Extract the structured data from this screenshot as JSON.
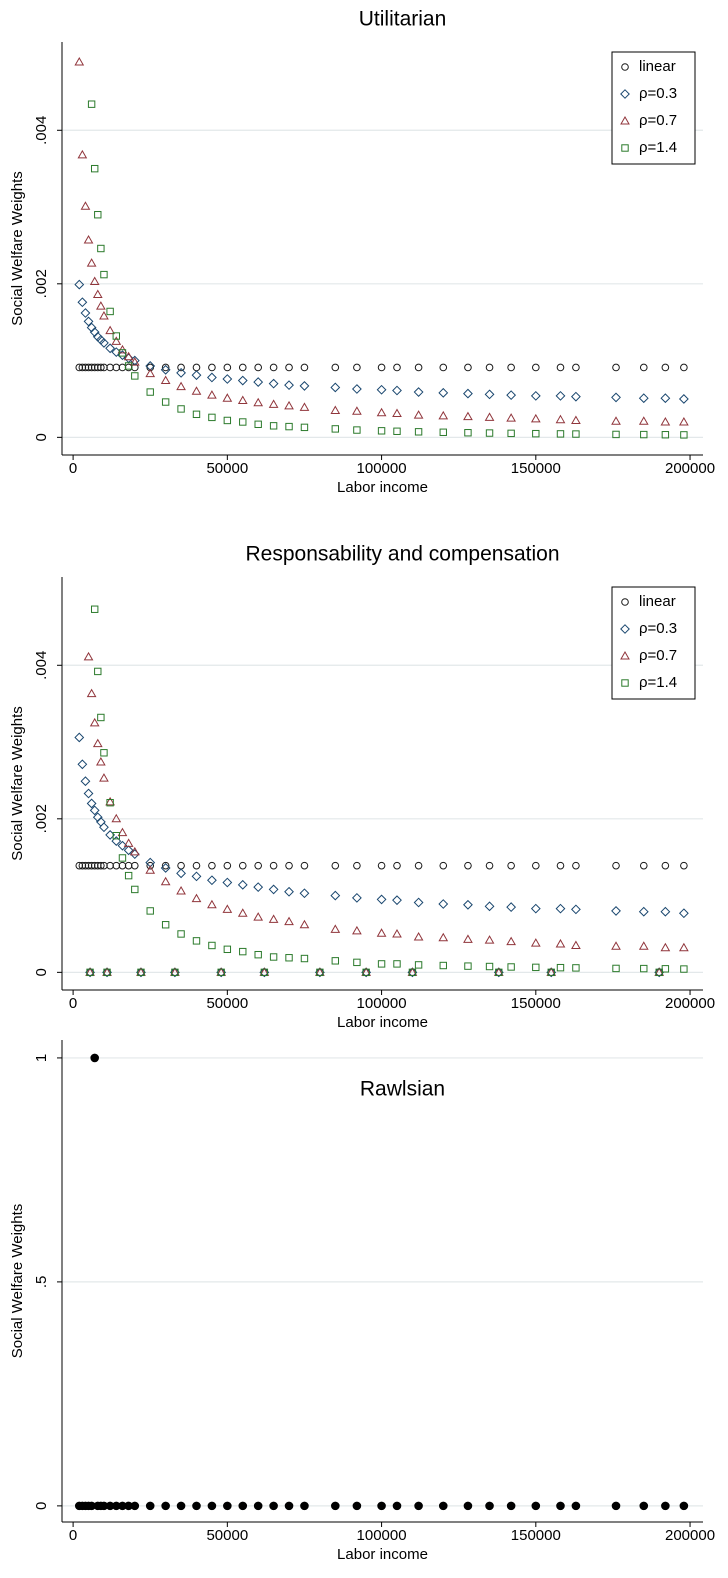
{
  "chart_data": [
    {
      "type": "scatter",
      "title": "Utilitarian",
      "xlabel": "Labor income",
      "ylabel": "Social Welfare Weights",
      "x": [
        2000,
        3000,
        4000,
        5000,
        6000,
        7000,
        8000,
        9000,
        10000,
        12000,
        14000,
        16000,
        18000,
        20000,
        25000,
        30000,
        35000,
        40000,
        45000,
        50000,
        55000,
        60000,
        65000,
        70000,
        75000,
        85000,
        92000,
        100000,
        105000,
        112000,
        120000,
        128000,
        135000,
        142000,
        150000,
        158000,
        163000,
        176000,
        185000,
        192000,
        198000
      ],
      "series": [
        {
          "name": "linear",
          "color": "#1a1a1a",
          "marker": "circle",
          "values": [
            0.00091,
            0.00091,
            0.00091,
            0.00091,
            0.00091,
            0.00091,
            0.00091,
            0.00091,
            0.00091,
            0.00091,
            0.00091,
            0.00091,
            0.00091,
            0.00091,
            0.00091,
            0.00091,
            0.00091,
            0.00091,
            0.00091,
            0.00091,
            0.00091,
            0.00091,
            0.00091,
            0.00091,
            0.00091,
            0.00091,
            0.00091,
            0.00091,
            0.00091,
            0.00091,
            0.00091,
            0.00091,
            0.00091,
            0.00091,
            0.00091,
            0.00091,
            0.00091,
            0.00091,
            0.00091,
            0.00091,
            0.00091
          ]
        },
        {
          "name": "ρ=0.3",
          "color": "#1a476f",
          "marker": "diamond",
          "values": [
            0.00199,
            0.00176,
            0.00162,
            0.00151,
            0.00143,
            0.00137,
            0.00131,
            0.00127,
            0.00123,
            0.00116,
            0.00111,
            0.00107,
            0.00103,
            0.001,
            0.00093,
            0.00088,
            0.00084,
            0.00081,
            0.00078,
            0.00076,
            0.00074,
            0.00072,
            0.0007,
            0.00068,
            0.00067,
            0.00065,
            0.00063,
            0.00062,
            0.00061,
            0.00059,
            0.00058,
            0.00057,
            0.00056,
            0.00055,
            0.00054,
            0.00054,
            0.00053,
            0.00052,
            0.00051,
            0.00051,
            0.0005
          ]
        },
        {
          "name": "ρ=0.7",
          "color": "#90353b",
          "marker": "triangle",
          "values": [
            0.00489,
            0.00368,
            0.00301,
            0.00257,
            0.00227,
            0.00203,
            0.00186,
            0.00171,
            0.00158,
            0.00139,
            0.00125,
            0.00114,
            0.00105,
            0.00098,
            0.00083,
            0.00074,
            0.00066,
            0.0006,
            0.00055,
            0.00051,
            0.00048,
            0.00045,
            0.00043,
            0.00041,
            0.00039,
            0.00035,
            0.00034,
            0.00032,
            0.00031,
            0.00029,
            0.00028,
            0.00027,
            0.00026,
            0.00025,
            0.00024,
            0.00023,
            0.00022,
            0.00021,
            0.00021,
            0.0002,
            0.0002
          ]
        },
        {
          "name": "ρ=1.4",
          "color": "#2b7a2b",
          "marker": "square",
          "values": [
            null,
            null,
            null,
            null,
            0.00434,
            0.0035,
            0.0029,
            0.00246,
            0.00212,
            0.00164,
            0.00132,
            0.0011,
            0.00093,
            0.0008,
            0.00059,
            0.00046,
            0.00037,
            0.0003,
            0.00026,
            0.00022,
            0.0002,
            0.00017,
            0.00015,
            0.00014,
            0.00013,
            0.00011,
            9.5e-05,
            8.5e-05,
            7.9e-05,
            7.2e-05,
            6.6e-05,
            6e-05,
            5.6e-05,
            5.2e-05,
            4.8e-05,
            4.5e-05,
            4.3e-05,
            3.8e-05,
            3.6e-05,
            3.4e-05,
            3.2e-05
          ]
        }
      ],
      "xlim": [
        -3600,
        204200
      ],
      "xticks": [
        0,
        50000,
        100000,
        150000,
        200000
      ],
      "ylim": [
        -0.00023,
        0.00515
      ],
      "yticks": [
        0,
        {
          "value": 0.002,
          "label": ".002"
        },
        {
          "value": 0.004,
          "label": ".004"
        }
      ],
      "grid": true,
      "legend": "top-right"
    },
    {
      "type": "scatter",
      "title": "Responsability and compensation",
      "xlabel": "Labor income",
      "ylabel": "Social Welfare Weights",
      "x": [
        2000,
        3000,
        4000,
        5000,
        6000,
        7000,
        8000,
        9000,
        10000,
        12000,
        14000,
        16000,
        18000,
        20000,
        25000,
        30000,
        35000,
        40000,
        45000,
        50000,
        55000,
        60000,
        65000,
        70000,
        75000,
        85000,
        92000,
        100000,
        105000,
        112000,
        120000,
        128000,
        135000,
        142000,
        150000,
        158000,
        163000,
        176000,
        185000,
        192000,
        198000,
        5500,
        11000,
        22000,
        33000,
        48000,
        62000,
        80000,
        95000,
        110000,
        138000,
        155000,
        190000
      ],
      "series": [
        {
          "name": "linear",
          "color": "#1a1a1a",
          "marker": "circle",
          "values": [
            0.00139,
            0.00139,
            0.00139,
            0.00139,
            0.00139,
            0.00139,
            0.00139,
            0.00139,
            0.00139,
            0.00139,
            0.00139,
            0.00139,
            0.00139,
            0.00139,
            0.00139,
            0.00139,
            0.00139,
            0.00139,
            0.00139,
            0.00139,
            0.00139,
            0.00139,
            0.00139,
            0.00139,
            0.00139,
            0.00139,
            0.00139,
            0.00139,
            0.00139,
            0.00139,
            0.00139,
            0.00139,
            0.00139,
            0.00139,
            0.00139,
            0.00139,
            0.00139,
            0.00139,
            0.00139,
            0.00139,
            0.00139,
            0,
            0,
            0,
            0,
            0,
            0,
            0,
            0,
            0,
            0,
            0,
            0
          ]
        },
        {
          "name": "ρ=0.3",
          "color": "#1a476f",
          "marker": "diamond",
          "values": [
            0.00306,
            0.00271,
            0.00249,
            0.00233,
            0.0022,
            0.00211,
            0.00202,
            0.00196,
            0.00189,
            0.00179,
            0.00171,
            0.00165,
            0.00159,
            0.00154,
            0.00143,
            0.00136,
            0.00129,
            0.00125,
            0.0012,
            0.00117,
            0.00114,
            0.00111,
            0.00108,
            0.00105,
            0.00103,
            0.001,
            0.00097,
            0.00095,
            0.00094,
            0.00091,
            0.00089,
            0.00088,
            0.00086,
            0.00085,
            0.00083,
            0.00083,
            0.00082,
            0.0008,
            0.00079,
            0.00079,
            0.00077,
            0,
            0,
            0,
            0,
            0,
            0,
            0,
            0,
            0,
            0,
            0,
            0
          ]
        },
        {
          "name": "ρ=0.7",
          "color": "#90353b",
          "marker": "triangle",
          "values": [
            null,
            null,
            null,
            0.00411,
            0.00363,
            0.00325,
            0.00298,
            0.00274,
            0.00253,
            0.00222,
            0.002,
            0.00182,
            0.00168,
            0.00157,
            0.00133,
            0.00118,
            0.00106,
            0.00096,
            0.00088,
            0.00082,
            0.00077,
            0.00072,
            0.00069,
            0.00066,
            0.00062,
            0.00056,
            0.00054,
            0.00051,
            0.0005,
            0.00046,
            0.00045,
            0.00043,
            0.00042,
            0.0004,
            0.00038,
            0.00037,
            0.00035,
            0.00034,
            0.00034,
            0.00032,
            0.00032,
            0,
            0,
            0,
            0,
            0,
            0,
            0,
            0,
            0,
            0,
            0,
            0
          ]
        },
        {
          "name": "ρ=1.4",
          "color": "#2b7a2b",
          "marker": "square",
          "values": [
            null,
            null,
            null,
            null,
            null,
            0.00473,
            0.00392,
            0.00332,
            0.00286,
            0.00221,
            0.00178,
            0.00149,
            0.00126,
            0.00108,
            0.0008,
            0.00062,
            0.0005,
            0.00041,
            0.00035,
            0.0003,
            0.00027,
            0.00023,
            0.0002,
            0.00019,
            0.00018,
            0.00015,
            0.00013,
            0.00011,
            0.00011,
            9.7e-05,
            8.9e-05,
            8.1e-05,
            7.6e-05,
            7e-05,
            6.5e-05,
            6.1e-05,
            5.8e-05,
            5.1e-05,
            4.9e-05,
            4.6e-05,
            4.3e-05,
            0,
            0,
            0,
            0,
            0,
            0,
            0,
            0,
            0,
            0,
            0,
            0
          ]
        }
      ],
      "xlim": [
        -3600,
        204200
      ],
      "xticks": [
        0,
        50000,
        100000,
        150000,
        200000
      ],
      "ylim": [
        -0.00023,
        0.00515
      ],
      "yticks": [
        0,
        {
          "value": 0.002,
          "label": ".002"
        },
        {
          "value": 0.004,
          "label": ".004"
        }
      ],
      "grid": true,
      "legend": "top-right"
    },
    {
      "type": "scatter",
      "title": "Rawlsian",
      "xlabel": "Labor income",
      "ylabel": "Social Welfare Weights",
      "x": [
        2000,
        3000,
        4000,
        5000,
        6000,
        7000,
        8000,
        9000,
        10000,
        12000,
        14000,
        16000,
        18000,
        20000,
        25000,
        30000,
        35000,
        40000,
        45000,
        50000,
        55000,
        60000,
        65000,
        70000,
        75000,
        85000,
        92000,
        100000,
        105000,
        112000,
        120000,
        128000,
        135000,
        142000,
        150000,
        158000,
        163000,
        176000,
        185000,
        192000,
        198000
      ],
      "series": [
        {
          "color": "#000000",
          "marker": "dot",
          "values": [
            0,
            0,
            0,
            0,
            0,
            1,
            0,
            0,
            0,
            0,
            0,
            0,
            0,
            0,
            0,
            0,
            0,
            0,
            0,
            0,
            0,
            0,
            0,
            0,
            0,
            0,
            0,
            0,
            0,
            0,
            0,
            0,
            0,
            0,
            0,
            0,
            0,
            0,
            0,
            0,
            0
          ]
        }
      ],
      "xlim": [
        -3600,
        204200
      ],
      "xticks": [
        0,
        50000,
        100000,
        150000,
        200000
      ],
      "ylim": [
        -0.036,
        1.04
      ],
      "yticks": [
        0,
        {
          "value": 0.5,
          "label": ".5"
        },
        1
      ],
      "grid": true
    }
  ]
}
